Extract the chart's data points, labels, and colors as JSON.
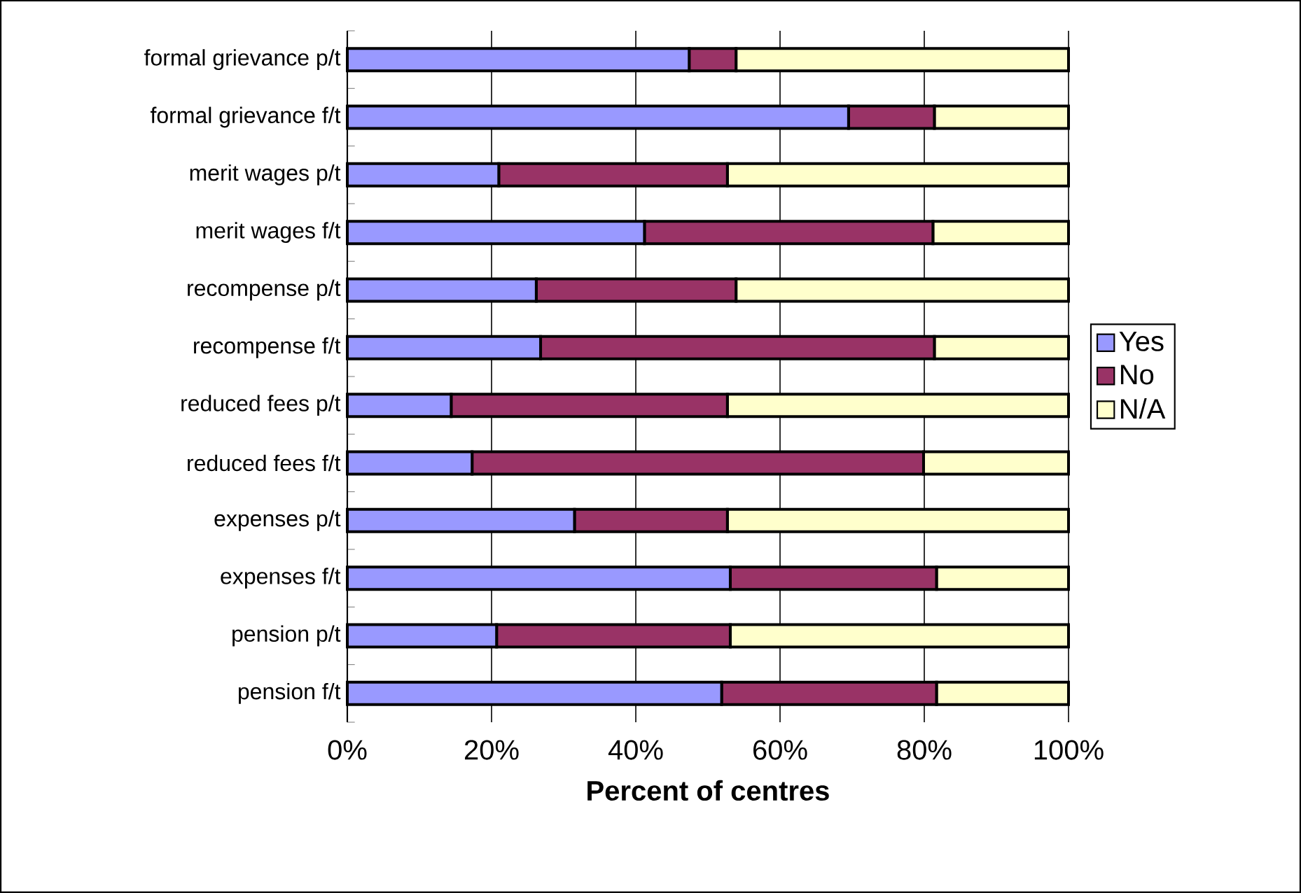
{
  "chart_data": {
    "type": "bar",
    "orientation": "horizontal",
    "stacked": true,
    "xlabel": "Percent of centres",
    "categories": [
      "formal grievance p/t",
      "formal grievance f/t",
      "merit wages p/t",
      "merit wages f/t",
      "recompense p/t",
      "recompense f/t",
      "reduced fees p/t",
      "reduced fees f/t",
      "expenses p/t",
      "expenses f/t",
      "pension p/t",
      "pension f/t"
    ],
    "series": [
      {
        "name": "Yes",
        "color": "#9999ff",
        "values": [
          47.4,
          69.5,
          21.0,
          41.2,
          26.2,
          26.8,
          14.4,
          17.3,
          31.5,
          53.1,
          20.7,
          51.9
        ]
      },
      {
        "name": "No",
        "color": "#993366",
        "values": [
          6.5,
          11.9,
          31.7,
          40.0,
          27.7,
          54.6,
          38.3,
          62.6,
          21.2,
          28.6,
          32.4,
          29.8
        ]
      },
      {
        "name": "N/A",
        "color": "#ffffcc",
        "values": [
          46.1,
          18.6,
          47.3,
          18.8,
          46.1,
          18.6,
          47.3,
          20.1,
          47.3,
          18.3,
          46.9,
          18.3
        ]
      }
    ],
    "xlim": [
      0,
      100
    ],
    "xticks": [
      {
        "value": 0,
        "label": "0%"
      },
      {
        "value": 20,
        "label": "20%"
      },
      {
        "value": 40,
        "label": "40%"
      },
      {
        "value": 60,
        "label": "60%"
      },
      {
        "value": 80,
        "label": "80%"
      },
      {
        "value": 100,
        "label": "100%"
      }
    ],
    "grid": "x",
    "legend": "right"
  }
}
